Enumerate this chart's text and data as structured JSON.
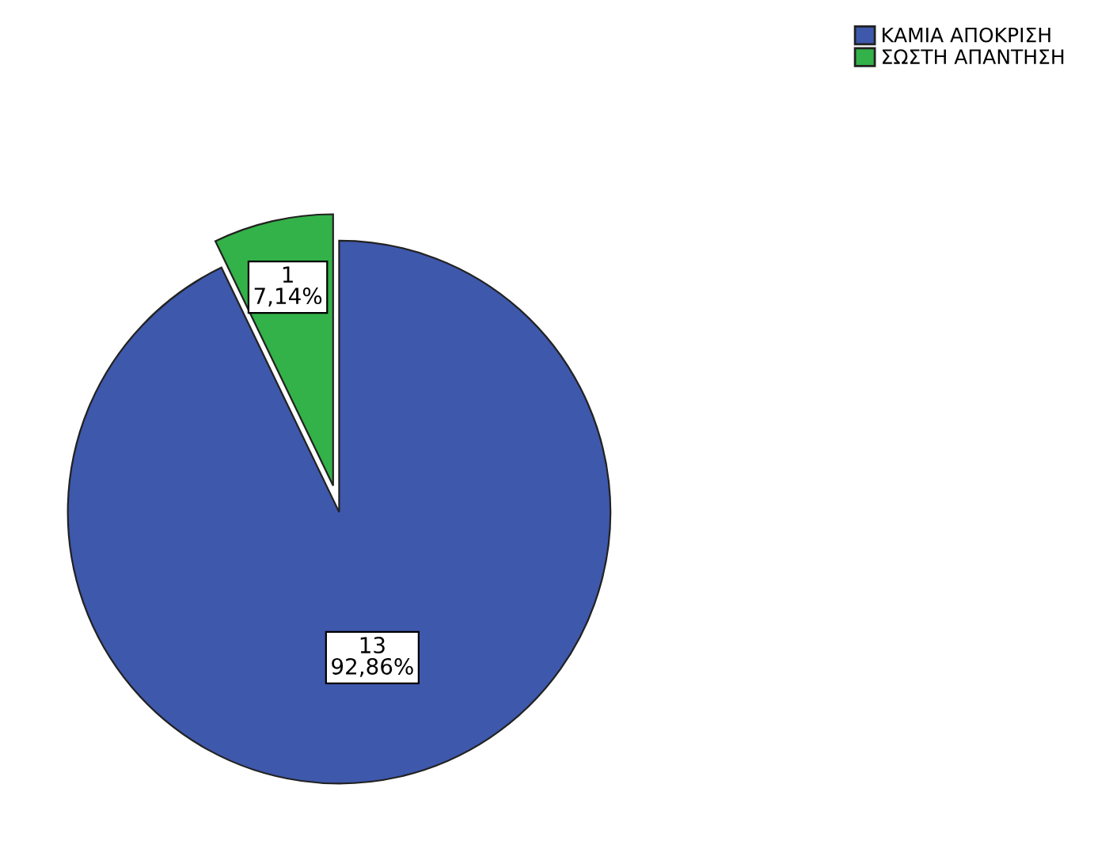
{
  "chart_data": {
    "type": "pie",
    "categories": [
      "ΚΑΜΙΑ ΑΠΟΚΡΙΣΗ",
      "ΣΩΣΤΗ ΑΠΑΝΤΗΣΗ"
    ],
    "values": [
      13,
      1
    ],
    "colors": [
      "#3e58ac",
      "#33b249"
    ],
    "value_labels": [
      "13\n92,86%",
      "1\n7,14%"
    ],
    "legend": "top right"
  }
}
